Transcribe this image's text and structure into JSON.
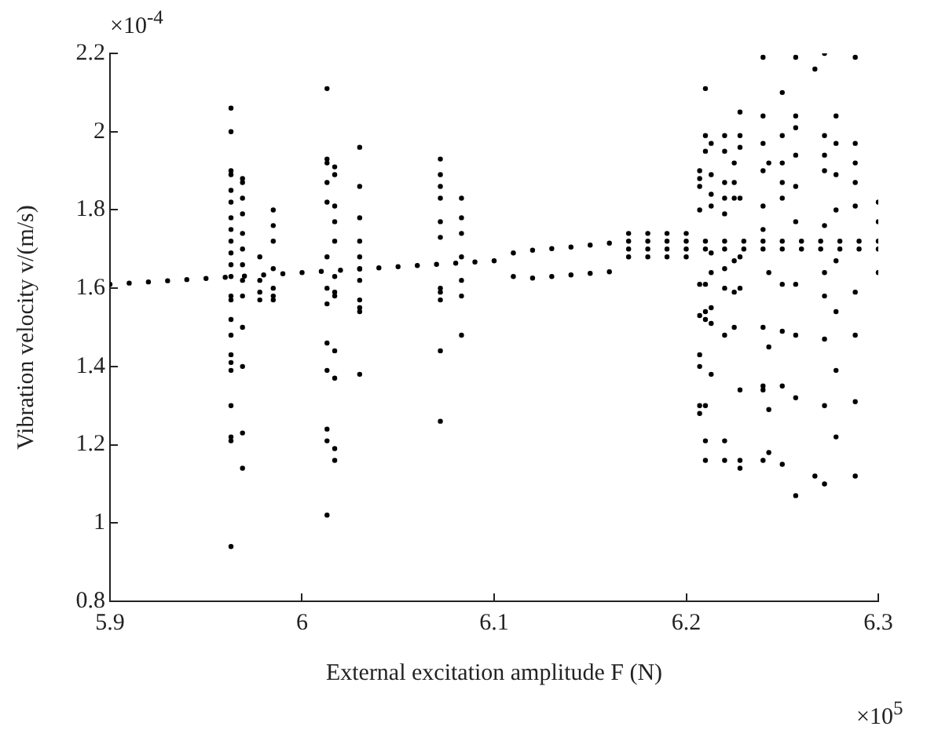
{
  "chart_data": {
    "type": "scatter",
    "xlabel": "External excitation amplitude F (N)",
    "ylabel": "Vibration velocity v/(m/s)",
    "annotations": [
      "×10$^{-4}$",
      "×10$^{5}$"
    ],
    "xlim": [
      5.9,
      6.3
    ],
    "xticks": [
      5.9,
      6,
      6.1,
      6.2,
      6.3
    ],
    "ylim": [
      0.8,
      2.2
    ],
    "yticks": [
      0.8,
      1,
      1.2,
      1.4,
      1.6,
      1.8,
      2,
      2.2
    ],
    "grid": false,
    "legend": false,
    "marker": "circle",
    "series": [
      {
        "color": "#000000",
        "x": [
          5.9,
          5.91,
          5.92,
          5.93,
          5.94,
          5.95,
          5.96,
          5.97,
          5.98,
          5.99,
          6.0,
          6.01,
          6.02,
          6.03,
          6.04,
          6.05,
          6.06,
          6.07,
          6.08,
          6.09,
          6.1,
          6.11,
          6.12,
          6.13,
          6.14,
          6.15,
          6.16,
          6.11,
          6.12,
          6.13,
          6.14,
          6.15,
          6.16,
          6.17,
          6.17,
          6.17,
          6.17,
          6.18,
          6.18,
          6.18,
          6.18,
          6.19,
          6.19,
          6.19,
          6.19,
          6.2,
          6.2,
          6.2,
          6.2,
          6.21,
          6.21,
          6.22,
          6.22,
          6.23,
          6.23,
          6.24,
          6.24,
          6.25,
          6.25,
          6.26,
          6.26,
          6.27,
          6.27,
          6.28,
          6.28,
          6.29,
          6.29,
          6.3,
          6.3,
          5.963,
          5.963,
          5.963,
          5.963,
          5.963,
          5.963,
          5.963,
          5.963,
          5.963,
          5.963,
          5.963,
          5.963,
          5.963,
          5.963,
          5.963,
          5.963,
          5.963,
          5.963,
          5.963,
          5.963,
          5.963,
          5.963,
          5.963,
          5.969,
          5.969,
          5.969,
          5.969,
          5.969,
          5.969,
          5.969,
          5.969,
          5.969,
          5.969,
          5.969,
          5.969,
          5.969,
          5.978,
          5.978,
          5.978,
          5.978,
          5.985,
          5.985,
          5.985,
          5.985,
          5.985,
          5.985,
          5.985,
          6.013,
          6.013,
          6.013,
          6.013,
          6.013,
          6.013,
          6.013,
          6.013,
          6.013,
          6.013,
          6.013,
          6.013,
          6.013,
          6.017,
          6.017,
          6.017,
          6.017,
          6.017,
          6.017,
          6.017,
          6.017,
          6.017,
          6.017,
          6.017,
          6.017,
          6.03,
          6.03,
          6.03,
          6.03,
          6.03,
          6.03,
          6.03,
          6.03,
          6.03,
          6.03,
          6.03,
          6.072,
          6.072,
          6.072,
          6.072,
          6.072,
          6.072,
          6.072,
          6.072,
          6.072,
          6.072,
          6.072,
          6.083,
          6.083,
          6.083,
          6.083,
          6.083,
          6.083,
          6.083,
          6.207,
          6.207,
          6.207,
          6.207,
          6.207,
          6.207,
          6.207,
          6.207,
          6.207,
          6.207,
          6.21,
          6.21,
          6.21,
          6.21,
          6.21,
          6.21,
          6.21,
          6.21,
          6.21,
          6.213,
          6.213,
          6.213,
          6.213,
          6.213,
          6.213,
          6.213,
          6.213,
          6.213,
          6.22,
          6.22,
          6.22,
          6.22,
          6.22,
          6.22,
          6.22,
          6.22,
          6.22,
          6.22,
          6.225,
          6.225,
          6.225,
          6.225,
          6.225,
          6.225,
          6.228,
          6.228,
          6.228,
          6.228,
          6.228,
          6.228,
          6.228,
          6.228,
          6.228,
          6.24,
          6.24,
          6.24,
          6.24,
          6.24,
          6.24,
          6.24,
          6.24,
          6.24,
          6.24,
          6.243,
          6.243,
          6.243,
          6.243,
          6.243,
          6.25,
          6.25,
          6.25,
          6.25,
          6.25,
          6.25,
          6.25,
          6.25,
          6.25,
          6.257,
          6.257,
          6.257,
          6.257,
          6.257,
          6.257,
          6.257,
          6.257,
          6.257,
          6.257,
          6.267,
          6.267,
          6.272,
          6.272,
          6.272,
          6.272,
          6.272,
          6.272,
          6.272,
          6.272,
          6.272,
          6.272,
          6.278,
          6.278,
          6.278,
          6.278,
          6.278,
          6.278,
          6.278,
          6.278,
          6.288,
          6.288,
          6.288,
          6.288,
          6.288,
          6.288,
          6.288,
          6.288,
          6.288,
          6.3,
          6.3,
          6.3
        ],
        "values": [
          1.61,
          1.613,
          1.616,
          1.619,
          1.622,
          1.625,
          1.628,
          1.631,
          1.634,
          1.637,
          1.64,
          1.643,
          1.646,
          1.649,
          1.652,
          1.655,
          1.658,
          1.661,
          1.664,
          1.667,
          1.67,
          1.69,
          1.697,
          1.701,
          1.705,
          1.71,
          1.715,
          1.63,
          1.626,
          1.63,
          1.634,
          1.638,
          1.642,
          1.68,
          1.7,
          1.72,
          1.74,
          1.68,
          1.7,
          1.72,
          1.74,
          1.68,
          1.7,
          1.72,
          1.74,
          1.68,
          1.7,
          1.72,
          1.74,
          1.7,
          1.72,
          1.7,
          1.72,
          1.7,
          1.72,
          1.7,
          1.72,
          1.7,
          1.72,
          1.7,
          1.72,
          1.7,
          1.72,
          1.7,
          1.72,
          1.7,
          1.72,
          1.7,
          1.72,
          2.06,
          2.0,
          1.9,
          1.89,
          1.85,
          1.82,
          1.78,
          1.75,
          1.72,
          1.69,
          1.66,
          1.63,
          1.58,
          1.57,
          1.52,
          1.48,
          1.43,
          1.41,
          1.39,
          1.3,
          1.22,
          1.21,
          0.94,
          1.88,
          1.87,
          1.83,
          1.79,
          1.74,
          1.7,
          1.66,
          1.62,
          1.58,
          1.5,
          1.4,
          1.23,
          1.14,
          1.68,
          1.62,
          1.59,
          1.57,
          1.8,
          1.76,
          1.72,
          1.65,
          1.6,
          1.58,
          1.57,
          2.11,
          1.93,
          1.92,
          1.87,
          1.82,
          1.68,
          1.6,
          1.56,
          1.46,
          1.39,
          1.24,
          1.21,
          1.02,
          1.91,
          1.89,
          1.81,
          1.77,
          1.72,
          1.63,
          1.59,
          1.58,
          1.44,
          1.37,
          1.19,
          1.16,
          1.96,
          1.86,
          1.78,
          1.72,
          1.68,
          1.65,
          1.62,
          1.57,
          1.55,
          1.54,
          1.38,
          1.93,
          1.89,
          1.86,
          1.83,
          1.77,
          1.73,
          1.6,
          1.59,
          1.57,
          1.44,
          1.26,
          1.83,
          1.78,
          1.74,
          1.68,
          1.62,
          1.58,
          1.48,
          1.9,
          1.88,
          1.86,
          1.8,
          1.61,
          1.53,
          1.43,
          1.4,
          1.3,
          1.28,
          2.11,
          1.99,
          1.95,
          1.61,
          1.54,
          1.52,
          1.3,
          1.21,
          1.16,
          1.97,
          1.89,
          1.84,
          1.81,
          1.69,
          1.64,
          1.55,
          1.51,
          1.38,
          1.99,
          1.95,
          1.87,
          1.83,
          1.79,
          1.65,
          1.6,
          1.48,
          1.21,
          1.16,
          1.92,
          1.87,
          1.83,
          1.67,
          1.59,
          1.5,
          2.05,
          1.99,
          1.96,
          1.83,
          1.68,
          1.6,
          1.34,
          1.16,
          1.14,
          2.19,
          2.04,
          1.97,
          1.9,
          1.81,
          1.75,
          1.5,
          1.35,
          1.34,
          1.16,
          1.92,
          1.64,
          1.45,
          1.29,
          1.18,
          2.1,
          1.99,
          1.92,
          1.87,
          1.83,
          1.61,
          1.49,
          1.35,
          1.15,
          2.19,
          2.04,
          2.01,
          1.94,
          1.86,
          1.77,
          1.61,
          1.48,
          1.32,
          1.07,
          2.16,
          1.12,
          2.2,
          1.99,
          1.94,
          1.9,
          1.76,
          1.64,
          1.58,
          1.47,
          1.3,
          1.1,
          2.04,
          1.97,
          1.89,
          1.8,
          1.67,
          1.54,
          1.39,
          1.22,
          2.19,
          1.97,
          1.92,
          1.87,
          1.81,
          1.59,
          1.48,
          1.31,
          1.12,
          1.82,
          1.77,
          1.64
        ]
      }
    ]
  }
}
